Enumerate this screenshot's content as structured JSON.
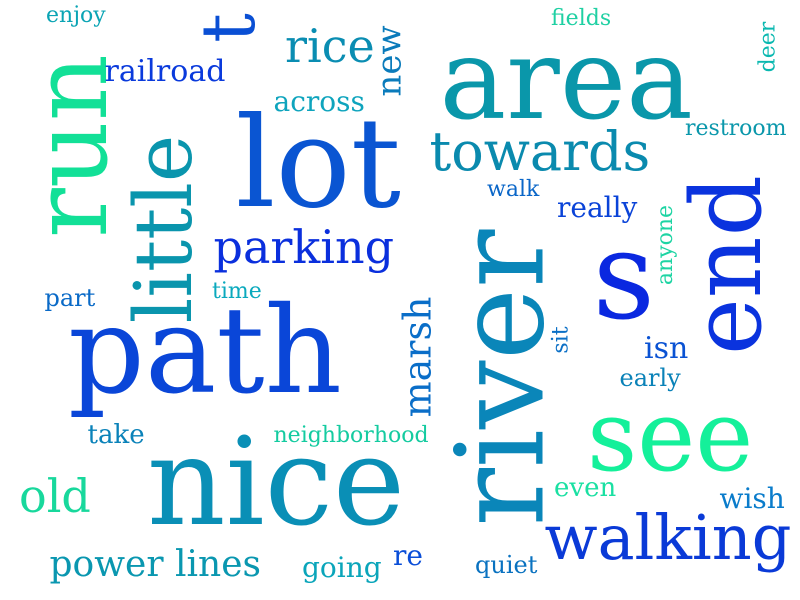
{
  "words": [
    {
      "text": "path",
      "color": "#0a46d8"
    },
    {
      "text": "nice",
      "color": "#0a8fb6"
    },
    {
      "text": "lot",
      "color": "#0a55d2"
    },
    {
      "text": "area",
      "color": "#0a97aa"
    },
    {
      "text": "river",
      "color": "#0a86b9"
    },
    {
      "text": "run",
      "color": "#12e097"
    },
    {
      "text": "s",
      "color": "#0a28e0"
    },
    {
      "text": "see",
      "color": "#14f09a"
    },
    {
      "text": "end",
      "color": "#0a33de"
    },
    {
      "text": "little",
      "color": "#0a95ad"
    },
    {
      "text": "walking",
      "color": "#0a3ad7"
    },
    {
      "text": "t",
      "color": "#0a4fd4"
    },
    {
      "text": "towards",
      "color": "#0a8aae"
    },
    {
      "text": "parking",
      "color": "#0a2fdd"
    },
    {
      "text": "marsh",
      "color": "#0a6ec8"
    },
    {
      "text": "rice",
      "color": "#0a8db2"
    },
    {
      "text": "new",
      "color": "#0a7bbb"
    },
    {
      "text": "old",
      "color": "#18d89c"
    },
    {
      "text": "power lines",
      "color": "#0a97b0"
    },
    {
      "text": "railroad",
      "color": "#0a3adc"
    },
    {
      "text": "across",
      "color": "#0ea4bd"
    },
    {
      "text": "restroom",
      "color": "#0a97ab"
    },
    {
      "text": "really",
      "color": "#0a43d8"
    },
    {
      "text": "neighborhood",
      "color": "#14cba0"
    },
    {
      "text": "take",
      "color": "#0a82b9"
    },
    {
      "text": "going",
      "color": "#0aa5ba"
    },
    {
      "text": "even",
      "color": "#1ae0a2"
    },
    {
      "text": "wish",
      "color": "#0a7ccb"
    },
    {
      "text": "isn",
      "color": "#0a52d3"
    },
    {
      "text": "early",
      "color": "#0a82b8"
    },
    {
      "text": "quiet",
      "color": "#0a72c0"
    },
    {
      "text": "re",
      "color": "#0a4ed8"
    },
    {
      "text": "part",
      "color": "#0a6ac7"
    },
    {
      "text": "time",
      "color": "#0aa9bd"
    },
    {
      "text": "walk",
      "color": "#0a66c8"
    },
    {
      "text": "fields",
      "color": "#1fd0a3"
    },
    {
      "text": "enjoy",
      "color": "#0aa4b4"
    },
    {
      "text": "deer",
      "color": "#0ab8b0"
    },
    {
      "text": "anyone",
      "color": "#1dd4a3"
    },
    {
      "text": "sit",
      "color": "#0a6fc6"
    }
  ]
}
